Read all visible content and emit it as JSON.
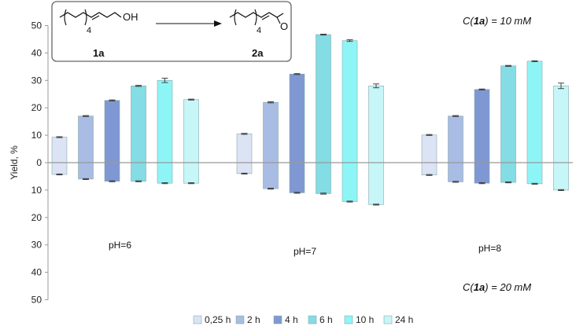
{
  "chart_data": {
    "type": "bar",
    "ylabel": "Yield, %",
    "y_upper": {
      "min": 0,
      "max": 50,
      "ticks": [
        "0",
        "10",
        "20",
        "30",
        "40",
        "50"
      ]
    },
    "y_lower": {
      "min": 0,
      "max": 50,
      "ticks": [
        "10",
        "20",
        "30",
        "40",
        "50"
      ]
    },
    "grid": false,
    "legend_position": "bottom",
    "condition_upper": "= 10 mM",
    "condition_lower": "= 20 mM",
    "condition_prefix": "C(",
    "condition_compound": "1a",
    "condition_close": ")",
    "categories": [
      "pH=6",
      "pH=7",
      "pH=8"
    ],
    "series": [
      {
        "name": "0,25 h",
        "color": "#dbe3f4",
        "upper": [
          9.3,
          10.5,
          10.1
        ],
        "upper_err": [
          0.1,
          0.1,
          0.1
        ],
        "lower": [
          4.3,
          4.0,
          4.5
        ],
        "lower_err": [
          0.1,
          0.1,
          0.1
        ]
      },
      {
        "name": "2 h",
        "color": "#a9bce4",
        "upper": [
          17.0,
          22.0,
          17.0
        ],
        "upper_err": [
          0.1,
          0.2,
          0.1
        ],
        "lower": [
          6.0,
          9.5,
          7.0
        ],
        "lower_err": [
          0.1,
          0.1,
          0.1
        ]
      },
      {
        "name": "4 h",
        "color": "#7f98d4",
        "upper": [
          22.7,
          32.3,
          26.7
        ],
        "upper_err": [
          0.1,
          0.1,
          0.1
        ],
        "lower": [
          6.8,
          11.0,
          7.5
        ],
        "lower_err": [
          0.1,
          0.1,
          0.1
        ]
      },
      {
        "name": "6 h",
        "color": "#84dce4",
        "upper": [
          28.0,
          46.7,
          35.3
        ],
        "upper_err": [
          0.1,
          0.1,
          0.1
        ],
        "lower": [
          6.8,
          11.3,
          7.2
        ],
        "lower_err": [
          0.1,
          0.2,
          0.1
        ]
      },
      {
        "name": "10 h",
        "color": "#8ef5f7",
        "upper": [
          30.0,
          44.5,
          37.0
        ],
        "upper_err": [
          0.8,
          0.3,
          0.1
        ],
        "lower": [
          7.5,
          14.2,
          7.7
        ],
        "lower_err": [
          0.1,
          0.1,
          0.1
        ]
      },
      {
        "name": "24 h",
        "color": "#c6f6f7",
        "upper": [
          23.0,
          28.0,
          28.0
        ],
        "upper_err": [
          0.1,
          0.7,
          1.0
        ],
        "lower": [
          7.5,
          15.3,
          10.0
        ],
        "lower_err": [
          0.1,
          0.1,
          0.1
        ]
      }
    ],
    "scheme": {
      "reactant_label": "1a",
      "product_label": "2a",
      "reactant_group": "OH",
      "subscript": "4"
    }
  }
}
